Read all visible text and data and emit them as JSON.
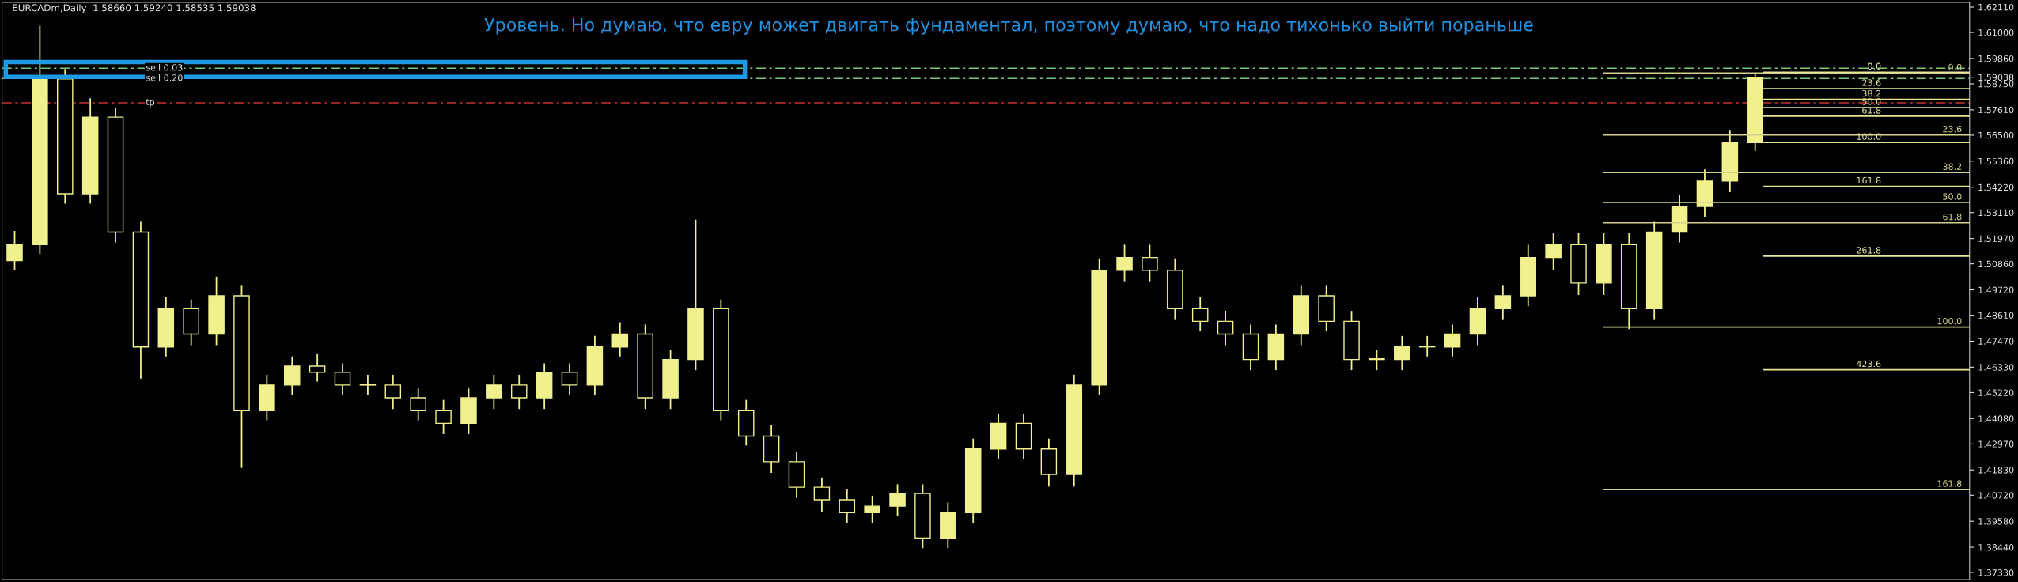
{
  "chart_data": {
    "type": "candlestick",
    "title": "EURCADm,Daily  1.58660 1.59240 1.58535 1.59038",
    "annotations": [
      "Уровень. Но думаю, что евру может двигать фундаментал, поэтому думаю, что надо тихонько выйти пораньше",
      {
        "text": "0.0",
        "y": 1.5922
      },
      {
        "text": "23.6",
        "y": 1.5651
      },
      {
        "text": "38.2",
        "y": 1.5486
      },
      {
        "text": "50.0",
        "y": 1.5355
      },
      {
        "text": "61.8",
        "y": 1.5266
      },
      {
        "text": "100.0",
        "y": 1.4809
      },
      {
        "text": "161.8",
        "y": 1.4097
      },
      {
        "text": "0.0",
        "y": 1.5926
      },
      {
        "text": "23.6",
        "y": 1.5854
      },
      {
        "text": "38.2",
        "y": 1.5807
      },
      {
        "text": "50.0",
        "y": 1.5771
      },
      {
        "text": "61.8",
        "y": 1.5733
      },
      {
        "text": "100.0",
        "y": 1.5618
      },
      {
        "text": "161.8",
        "y": 1.5426
      },
      {
        "text": "261.8",
        "y": 1.512
      },
      {
        "text": "423.6",
        "y": 1.4622
      }
    ],
    "categories": [
      null,
      null,
      null,
      null,
      null,
      null,
      null,
      null,
      null,
      null,
      null,
      null,
      null,
      null,
      null,
      null,
      null,
      null,
      null,
      null,
      null,
      null,
      null,
      null,
      null,
      null,
      null,
      null,
      null,
      null,
      null,
      null,
      null,
      null,
      null,
      null,
      null,
      null,
      null,
      null,
      null,
      null,
      null,
      null,
      null,
      null,
      null,
      null,
      null,
      null,
      null,
      null,
      null,
      null,
      null,
      null,
      null,
      null,
      null,
      null,
      null,
      null,
      null,
      null,
      null,
      null,
      null,
      null,
      null,
      null,
      null,
      null,
      null,
      null,
      null,
      null,
      null,
      null
    ],
    "color": "#f0f08c",
    "ohlc": [
      [
        1.51,
        1.523,
        1.506,
        1.517
      ],
      [
        1.517,
        1.613,
        1.513,
        1.5896
      ],
      [
        1.5896,
        1.594,
        1.535,
        1.5393
      ],
      [
        1.5393,
        1.5812,
        1.535,
        1.5729
      ],
      [
        1.5729,
        1.577,
        1.518,
        1.5225
      ],
      [
        1.5225,
        1.527,
        1.4583,
        1.4722
      ],
      [
        1.4722,
        1.494,
        1.468,
        1.489
      ],
      [
        1.489,
        1.493,
        1.473,
        1.4778
      ],
      [
        1.4778,
        1.503,
        1.473,
        1.4946
      ],
      [
        1.4946,
        1.499,
        1.4192,
        1.4443
      ],
      [
        1.4443,
        1.46,
        1.44,
        1.4555
      ],
      [
        1.4555,
        1.468,
        1.451,
        1.4638
      ],
      [
        1.4638,
        1.469,
        1.457,
        1.4611
      ],
      [
        1.4611,
        1.465,
        1.451,
        1.4555
      ],
      [
        1.4555,
        1.46,
        1.451,
        1.4555
      ],
      [
        1.4555,
        1.46,
        1.445,
        1.4499
      ],
      [
        1.4499,
        1.454,
        1.44,
        1.4443
      ],
      [
        1.4443,
        1.449,
        1.434,
        1.4387
      ],
      [
        1.4387,
        1.454,
        1.434,
        1.4499
      ],
      [
        1.4499,
        1.46,
        1.445,
        1.4555
      ],
      [
        1.4555,
        1.46,
        1.445,
        1.4499
      ],
      [
        1.4499,
        1.465,
        1.445,
        1.4611
      ],
      [
        1.4611,
        1.465,
        1.451,
        1.4555
      ],
      [
        1.4555,
        1.477,
        1.451,
        1.4722
      ],
      [
        1.4722,
        1.483,
        1.468,
        1.4778
      ],
      [
        1.4778,
        1.482,
        1.445,
        1.4499
      ],
      [
        1.4499,
        1.471,
        1.445,
        1.4667
      ],
      [
        1.4667,
        1.528,
        1.462,
        1.489
      ],
      [
        1.489,
        1.493,
        1.44,
        1.4443
      ],
      [
        1.4443,
        1.449,
        1.429,
        1.4331
      ],
      [
        1.4331,
        1.438,
        1.417,
        1.4219
      ],
      [
        1.4219,
        1.426,
        1.406,
        1.4107
      ],
      [
        1.4107,
        1.415,
        1.4,
        1.4052
      ],
      [
        1.4052,
        1.41,
        1.395,
        1.3996
      ],
      [
        1.3996,
        1.407,
        1.395,
        1.4024
      ],
      [
        1.4024,
        1.412,
        1.398,
        1.408
      ],
      [
        1.408,
        1.412,
        1.384,
        1.3884
      ],
      [
        1.3884,
        1.404,
        1.384,
        1.3996
      ],
      [
        1.3996,
        1.432,
        1.395,
        1.4275
      ],
      [
        1.4275,
        1.443,
        1.423,
        1.4387
      ],
      [
        1.4387,
        1.443,
        1.423,
        1.4275
      ],
      [
        1.4275,
        1.432,
        1.411,
        1.4163
      ],
      [
        1.4163,
        1.46,
        1.411,
        1.4555
      ],
      [
        1.4555,
        1.511,
        1.451,
        1.5058
      ],
      [
        1.5058,
        1.517,
        1.501,
        1.5114
      ],
      [
        1.5114,
        1.517,
        1.501,
        1.5058
      ],
      [
        1.5058,
        1.511,
        1.484,
        1.489
      ],
      [
        1.489,
        1.494,
        1.479,
        1.4834
      ],
      [
        1.4834,
        1.488,
        1.473,
        1.4778
      ],
      [
        1.4778,
        1.482,
        1.462,
        1.4667
      ],
      [
        1.4667,
        1.482,
        1.462,
        1.4778
      ],
      [
        1.4778,
        1.499,
        1.473,
        1.4946
      ],
      [
        1.4946,
        1.499,
        1.479,
        1.4834
      ],
      [
        1.4834,
        1.488,
        1.462,
        1.4667
      ],
      [
        1.4667,
        1.471,
        1.462,
        1.4667
      ],
      [
        1.4667,
        1.477,
        1.462,
        1.4722
      ],
      [
        1.4722,
        1.477,
        1.468,
        1.4722
      ],
      [
        1.4722,
        1.482,
        1.468,
        1.4778
      ],
      [
        1.4778,
        1.494,
        1.473,
        1.489
      ],
      [
        1.489,
        1.499,
        1.484,
        1.4946
      ],
      [
        1.4946,
        1.517,
        1.49,
        1.5114
      ],
      [
        1.5114,
        1.522,
        1.506,
        1.517
      ],
      [
        1.517,
        1.522,
        1.495,
        1.5002
      ],
      [
        1.5002,
        1.522,
        1.495,
        1.517
      ],
      [
        1.517,
        1.522,
        1.48,
        1.489
      ],
      [
        1.489,
        1.527,
        1.484,
        1.5225
      ],
      [
        1.5225,
        1.539,
        1.518,
        1.5338
      ],
      [
        1.5338,
        1.55,
        1.529,
        1.5449
      ],
      [
        1.5449,
        1.567,
        1.54,
        1.5617
      ],
      [
        1.5617,
        1.5924,
        1.558,
        1.5904
      ],
      null,
      null,
      null,
      null,
      null,
      null,
      null,
      null
    ],
    "ylim": [
      1.3702,
      1.6232
    ],
    "yticks": [
      {
        "value": 1.6211,
        "label": "1.62110"
      },
      {
        "value": 1.61,
        "label": "1.61000"
      },
      {
        "value": 1.5986,
        "label": "1.59860"
      },
      {
        "value": 1.59038,
        "label": "1.59038"
      },
      {
        "value": 1.5875,
        "label": "1.58750"
      },
      {
        "value": 1.5761,
        "label": "1.57610"
      },
      {
        "value": 1.565,
        "label": "1.56500"
      },
      {
        "value": 1.5536,
        "label": "1.55360"
      },
      {
        "value": 1.5422,
        "label": "1.54220"
      },
      {
        "value": 1.5311,
        "label": "1.53110"
      },
      {
        "value": 1.5197,
        "label": "1.51970"
      },
      {
        "value": 1.5086,
        "label": "1.50860"
      },
      {
        "value": 1.4972,
        "label": "1.49720"
      },
      {
        "value": 1.4861,
        "label": "1.48610"
      },
      {
        "value": 1.4747,
        "label": "1.47470"
      },
      {
        "value": 1.4633,
        "label": "1.46330"
      },
      {
        "value": 1.4522,
        "label": "1.45220"
      },
      {
        "value": 1.4408,
        "label": "1.44080"
      },
      {
        "value": 1.4297,
        "label": "1.42970"
      },
      {
        "value": 1.4183,
        "label": "1.41830"
      },
      {
        "value": 1.4072,
        "label": "1.40720"
      },
      {
        "value": 1.3958,
        "label": "1.39580"
      },
      {
        "value": 1.3844,
        "label": "1.38440"
      },
      {
        "value": 1.3733,
        "label": "1.37330"
      }
    ],
    "ref_lines": [
      {
        "axis": "y",
        "value": 1.5943,
        "label": "sell 0.03",
        "color": "#78c878",
        "line_style": "dashed"
      },
      {
        "axis": "y",
        "value": 1.5898,
        "label": "sell 0.20",
        "color": "#78c878",
        "line_style": "dashed"
      },
      {
        "axis": "y",
        "value": 1.5792,
        "label": "tp",
        "color": "#c83232",
        "line_style": "dashed"
      },
      {
        "axis": "y",
        "value": 1.5922,
        "color": "#d2d28c",
        "line_style": "solid"
      },
      {
        "axis": "y",
        "value": 1.5651,
        "color": "#d2d28c",
        "line_style": "solid"
      },
      {
        "axis": "y",
        "value": 1.5486,
        "color": "#d2d28c",
        "line_style": "solid"
      },
      {
        "axis": "y",
        "value": 1.5355,
        "color": "#d2d28c",
        "line_style": "solid"
      },
      {
        "axis": "y",
        "value": 1.5266,
        "color": "#d2d28c",
        "line_style": "solid"
      },
      {
        "axis": "y",
        "value": 1.4809,
        "color": "#d2d28c",
        "line_style": "solid"
      },
      {
        "axis": "y",
        "value": 1.4097,
        "color": "#d2d28c",
        "line_style": "solid"
      },
      {
        "axis": "y",
        "value": 1.5926,
        "color": "#e6e696",
        "line_style": "solid"
      },
      {
        "axis": "y",
        "value": 1.5854,
        "color": "#e6e696",
        "line_style": "solid"
      },
      {
        "axis": "y",
        "value": 1.5807,
        "color": "#e6e696",
        "line_style": "solid"
      },
      {
        "axis": "y",
        "value": 1.5771,
        "color": "#e6e696",
        "line_style": "solid"
      },
      {
        "axis": "y",
        "value": 1.5733,
        "color": "#e6e696",
        "line_style": "solid"
      },
      {
        "axis": "y",
        "value": 1.5618,
        "color": "#e6e696",
        "line_style": "solid"
      },
      {
        "axis": "y",
        "value": 1.5426,
        "color": "#e6e696",
        "line_style": "solid"
      },
      {
        "axis": "y",
        "value": 1.512,
        "color": "#e6e696",
        "line_style": "solid"
      },
      {
        "axis": "y",
        "value": 1.4622,
        "color": "#e6e696",
        "line_style": "solid"
      }
    ],
    "grid": false
  }
}
